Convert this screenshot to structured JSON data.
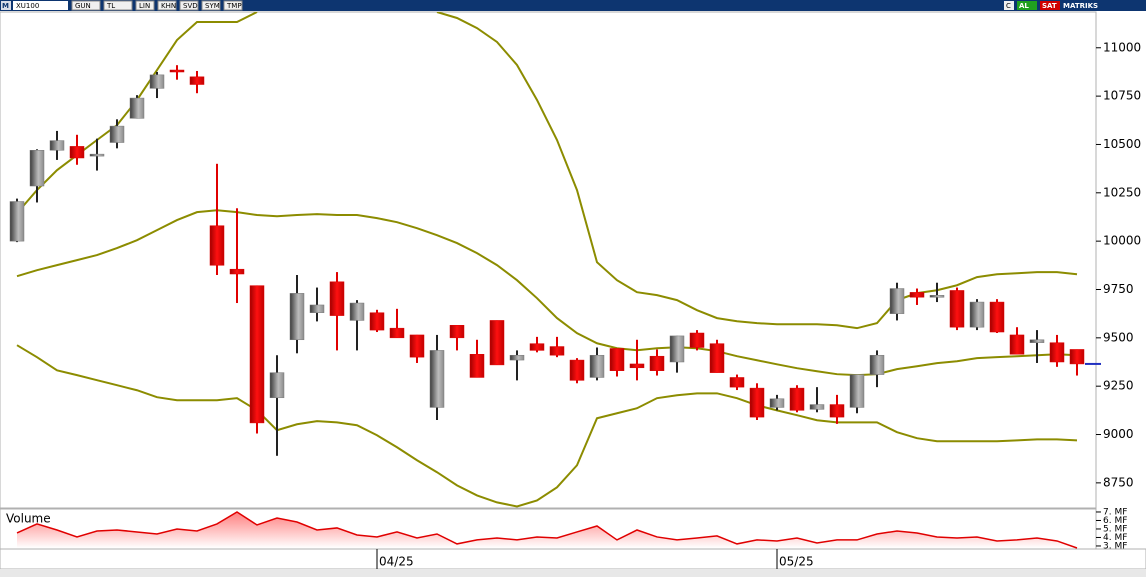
{
  "toolbar": {
    "symbol": "XU100",
    "buttons": [
      "GUN",
      "TL",
      "LIN",
      "KHN",
      "SVD",
      "SYM",
      "TMP"
    ],
    "right": [
      "C",
      "AL",
      "SAT"
    ],
    "brand": "MATRIKS"
  },
  "chart_data": {
    "type": "candlestick",
    "categories": [
      null,
      null,
      null,
      null,
      null,
      null,
      null,
      null,
      null,
      null,
      null,
      null,
      null,
      null,
      null,
      null,
      null,
      null,
      "04/25",
      null,
      null,
      null,
      null,
      null,
      null,
      null,
      null,
      null,
      null,
      null,
      null,
      null,
      null,
      null,
      null,
      null,
      null,
      null,
      "05/25",
      null,
      null,
      null,
      null,
      null,
      null,
      null,
      null,
      null,
      null,
      null,
      null,
      null,
      null,
      null
    ],
    "open": [
      10000,
      10285,
      10470,
      10490,
      10440,
      10510,
      10635,
      10790,
      10885,
      10850,
      10080,
      9855,
      9770,
      9190,
      9490,
      9630,
      9790,
      9590,
      9630,
      9550,
      9515,
      9140,
      9565,
      9415,
      9590,
      9385,
      9470,
      9455,
      9385,
      9295,
      9445,
      9365,
      9405,
      9375,
      9525,
      9470,
      9295,
      9240,
      9140,
      9240,
      9130,
      9155,
      9140,
      9310,
      9625,
      9735,
      9715,
      9745,
      9555,
      9685,
      9515,
      9475,
      9475,
      9440
    ],
    "high": [
      10220,
      10475,
      10570,
      10550,
      10530,
      10630,
      10755,
      10875,
      10910,
      10880,
      10400,
      10170,
      9770,
      9410,
      9825,
      9760,
      9840,
      9695,
      9645,
      9650,
      9515,
      9515,
      9565,
      9490,
      9590,
      9435,
      9505,
      9505,
      9395,
      9450,
      9445,
      9490,
      9440,
      9510,
      9540,
      9490,
      9310,
      9265,
      9205,
      9255,
      9245,
      9205,
      9310,
      9435,
      9785,
      9755,
      9785,
      9760,
      9700,
      9700,
      9555,
      9540,
      9515,
      9440
    ],
    "low": [
      9995,
      10200,
      10420,
      10395,
      10365,
      10480,
      10635,
      10740,
      10835,
      10765,
      9825,
      9680,
      9005,
      8890,
      9420,
      9585,
      9435,
      9435,
      9530,
      9500,
      9370,
      9075,
      9435,
      9295,
      9360,
      9280,
      9425,
      9400,
      9265,
      9280,
      9300,
      9280,
      9305,
      9320,
      9435,
      9320,
      9230,
      9075,
      9125,
      9115,
      9115,
      9055,
      9110,
      9245,
      9590,
      9670,
      9685,
      9540,
      9540,
      9525,
      9415,
      9370,
      9350,
      9305
    ],
    "close": [
      10205,
      10470,
      10520,
      10430,
      10450,
      10595,
      10740,
      10860,
      10880,
      10810,
      9875,
      9830,
      9060,
      9320,
      9730,
      9670,
      9615,
      9680,
      9540,
      9500,
      9400,
      9435,
      9500,
      9295,
      9360,
      9410,
      9435,
      9410,
      9280,
      9410,
      9330,
      9345,
      9330,
      9510,
      9450,
      9320,
      9245,
      9090,
      9185,
      9125,
      9155,
      9090,
      9310,
      9410,
      9755,
      9710,
      9720,
      9555,
      9685,
      9530,
      9415,
      9490,
      9375,
      9365
    ],
    "up_color": "#7a7a7a",
    "down_color": "#e00000",
    "overlays": [
      {
        "color": "#8c8c00",
        "values": [
          10145,
          10264,
          10367,
          10445,
          10523,
          10600,
          10730,
          10885,
          11040,
          11133,
          11133,
          11133,
          11185,
          null,
          null,
          null,
          null,
          null,
          null,
          null,
          null,
          11185,
          11154,
          11102,
          11030,
          10911,
          10730,
          10523,
          10264,
          9891,
          9798,
          9736,
          9721,
          9695,
          9643,
          9602,
          9586,
          9576,
          9570,
          9570,
          9570,
          9565,
          9550,
          9576,
          9695,
          9731,
          9746,
          9772,
          9814,
          9829,
          9834,
          9840,
          9840,
          9829
        ]
      },
      {
        "color": "#8c8c00",
        "values": [
          9819,
          9850,
          9876,
          9902,
          9928,
          9964,
          10005,
          10057,
          10109,
          10150,
          10160,
          10150,
          10135,
          10129,
          10135,
          10140,
          10135,
          10135,
          10119,
          10098,
          10067,
          10031,
          9990,
          9938,
          9876,
          9798,
          9705,
          9602,
          9524,
          9472,
          9446,
          9436,
          9446,
          9451,
          9446,
          9431,
          9405,
          9384,
          9363,
          9343,
          9327,
          9312,
          9307,
          9312,
          9338,
          9353,
          9369,
          9379,
          9395,
          9400,
          9405,
          9410,
          9415,
          9410
        ]
      },
      {
        "color": "#8c8c00",
        "values": [
          9462,
          9400,
          9332,
          9307,
          9281,
          9255,
          9229,
          9193,
          9177,
          9177,
          9177,
          9188,
          9125,
          9022,
          9053,
          9069,
          9063,
          9048,
          8996,
          8934,
          8867,
          8805,
          8737,
          8685,
          8649,
          8628,
          8659,
          8727,
          8841,
          9084,
          9110,
          9136,
          9188,
          9203,
          9213,
          9213,
          9188,
          9151,
          9125,
          9100,
          9074,
          9063,
          9063,
          9063,
          9012,
          8981,
          8965,
          8965,
          8965,
          8965,
          8970,
          8975,
          8975,
          8970
        ]
      }
    ],
    "last_price": 9365,
    "last_price_color": "#2030c0",
    "ylim": [
      8620,
      11185
    ],
    "yticks": [
      8750,
      9000,
      9250,
      9500,
      9750,
      10000,
      10250,
      10500,
      10750,
      11000
    ],
    "volume": {
      "label": "Volume",
      "color": "#e00000",
      "values": [
        4.53,
        5.59,
        4.88,
        4.06,
        4.76,
        4.88,
        4.65,
        4.41,
        5.0,
        4.76,
        5.59,
        7.0,
        5.47,
        6.29,
        5.82,
        4.88,
        5.12,
        4.29,
        4.06,
        4.65,
        3.94,
        4.41,
        3.24,
        3.71,
        3.94,
        3.71,
        4.06,
        3.94,
        4.65,
        5.35,
        3.71,
        4.88,
        4.06,
        3.71,
        3.94,
        4.18,
        3.24,
        3.71,
        3.59,
        3.94,
        3.35,
        3.71,
        3.71,
        4.41,
        4.76,
        4.53,
        4.06,
        3.94,
        4.06,
        3.59,
        3.71,
        3.94,
        3.59,
        2.76
      ],
      "ylim": [
        2.76,
        7.35
      ],
      "yticks": [
        {
          "value": 7,
          "label": "7. MF"
        },
        {
          "value": 6,
          "label": "6. MF"
        },
        {
          "value": 5,
          "label": "5. MF"
        },
        {
          "value": 4,
          "label": "4. MF"
        },
        {
          "value": 3,
          "label": "3. MF"
        }
      ]
    }
  }
}
